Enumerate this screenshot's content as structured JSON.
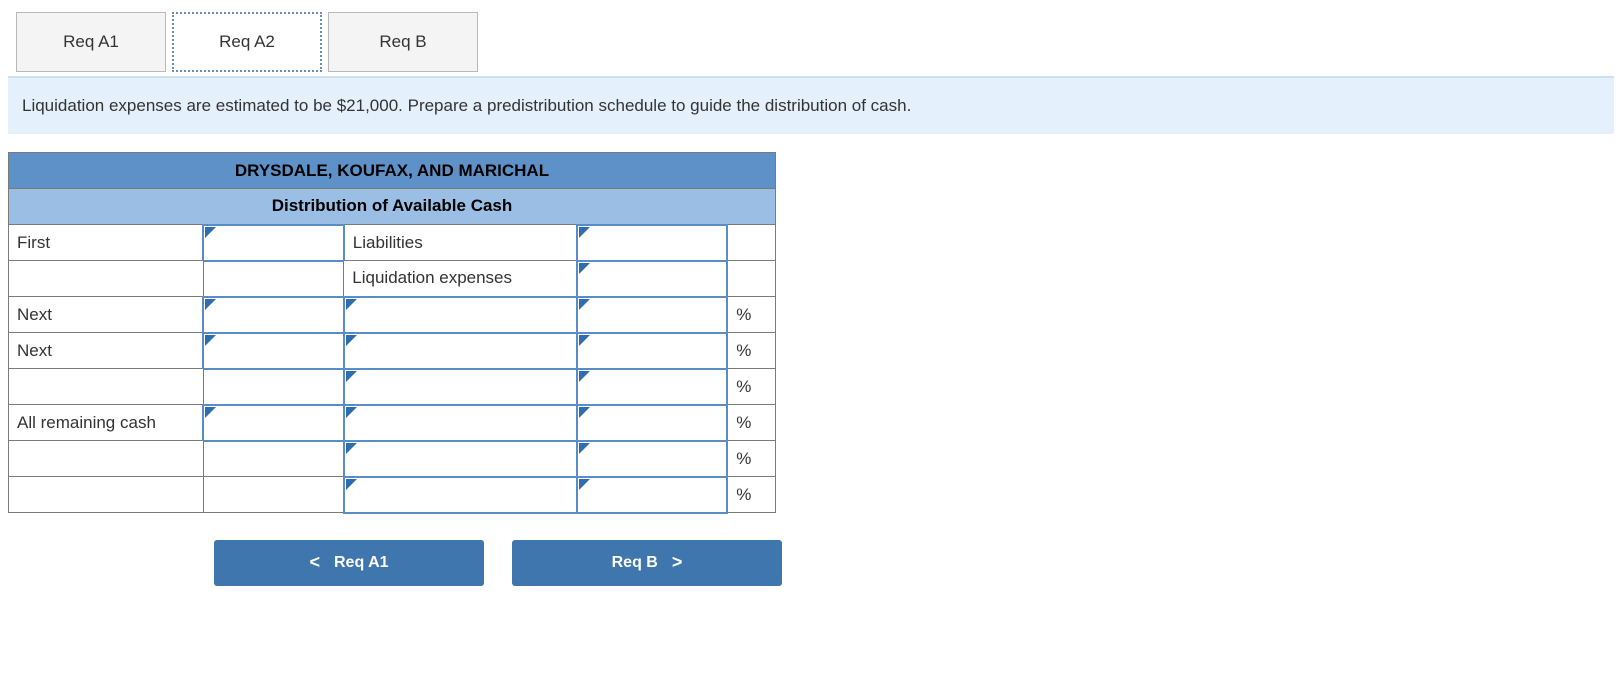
{
  "colors": {
    "tab_active_border": "#6a8fbf",
    "tab_bg": "#f4f4f4",
    "instruction_bg": "#e4f0fb",
    "header1_bg": "#5e91c7",
    "header2_bg": "#9bbfe4",
    "corner_triangle": "#2f6db1",
    "nav_button_bg": "#3e76ad",
    "cell_border": "#7a7a7a"
  },
  "tabs": {
    "items": [
      {
        "label": "Req A1",
        "active": false
      },
      {
        "label": "Req A2",
        "active": true
      },
      {
        "label": "Req B",
        "active": false
      }
    ]
  },
  "instruction": "Liquidation expenses are estimated to be $21,000. Prepare a predistribution schedule to guide the distribution of cash.",
  "table": {
    "title": "DRYSDALE, KOUFAX, AND MARICHAL",
    "subtitle": "Distribution of Available Cash",
    "percent_symbol": "%",
    "rows": [
      {
        "label": "First",
        "desc": "Liabilities",
        "amount": "",
        "suffix": ""
      },
      {
        "label": "",
        "desc": "Liquidation expenses",
        "amount": "",
        "suffix": ""
      },
      {
        "label": "Next",
        "desc": "",
        "amount": "",
        "suffix": "%"
      },
      {
        "label": "Next",
        "desc": "",
        "amount": "",
        "suffix": "%"
      },
      {
        "label": "",
        "desc": "",
        "amount": "",
        "suffix": "%"
      },
      {
        "label": "All remaining cash",
        "desc": "",
        "amount": "",
        "suffix": "%"
      },
      {
        "label": "",
        "desc": "",
        "amount": "",
        "suffix": "%"
      },
      {
        "label": "",
        "desc": "",
        "amount": "",
        "suffix": "%"
      }
    ]
  },
  "nav": {
    "prev": {
      "label": "Req A1",
      "chev": "<"
    },
    "next": {
      "label": "Req B",
      "chev": ">"
    }
  }
}
